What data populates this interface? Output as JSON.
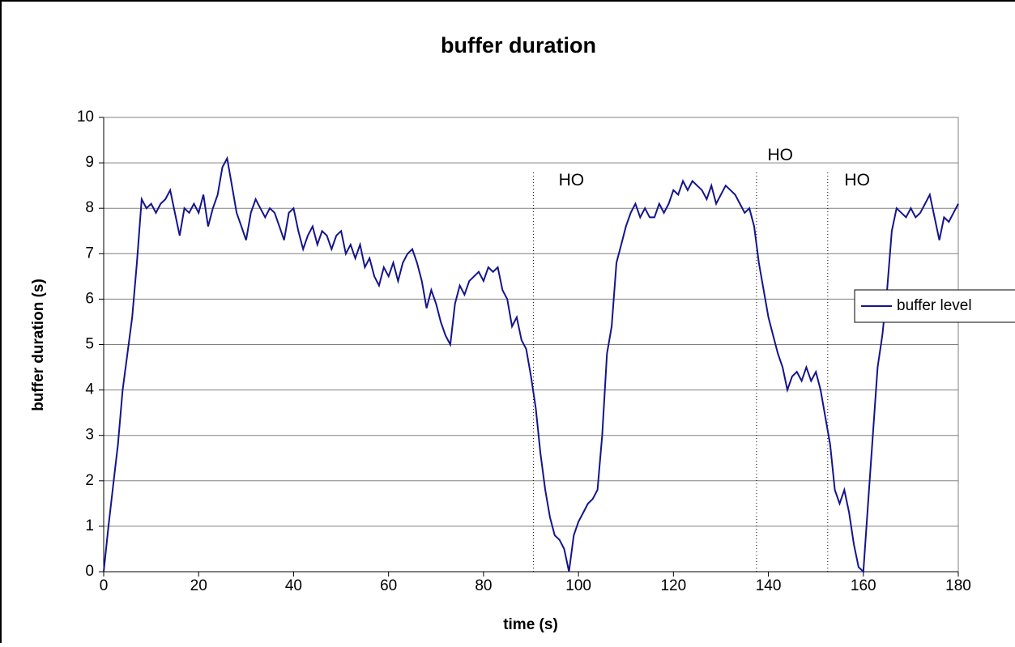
{
  "chart_data": {
    "type": "line",
    "title": "buffer duration",
    "xlabel": "time (s)",
    "ylabel": "buffer duration (s)",
    "xlim": [
      0,
      180
    ],
    "xticks": [
      0,
      20,
      40,
      60,
      80,
      100,
      120,
      140,
      160,
      180
    ],
    "ylim": [
      0,
      10
    ],
    "yticks": [
      0,
      1,
      2,
      3,
      4,
      5,
      6,
      7,
      8,
      9,
      10
    ],
    "grid": true,
    "legend": "right",
    "x": [
      0,
      1,
      2,
      3,
      4,
      5,
      6,
      7,
      8,
      9,
      10,
      11,
      12,
      13,
      14,
      15,
      16,
      17,
      18,
      19,
      20,
      21,
      22,
      23,
      24,
      25,
      26,
      27,
      28,
      29,
      30,
      31,
      32,
      33,
      34,
      35,
      36,
      37,
      38,
      39,
      40,
      41,
      42,
      43,
      44,
      45,
      46,
      47,
      48,
      49,
      50,
      51,
      52,
      53,
      54,
      55,
      56,
      57,
      58,
      59,
      60,
      61,
      62,
      63,
      64,
      65,
      66,
      67,
      68,
      69,
      70,
      71,
      72,
      73,
      74,
      75,
      76,
      77,
      78,
      79,
      80,
      81,
      82,
      83,
      84,
      85,
      86,
      87,
      88,
      89,
      90,
      91,
      92,
      93,
      94,
      95,
      96,
      97,
      98,
      99,
      100,
      101,
      102,
      103,
      104,
      105,
      106,
      107,
      108,
      109,
      110,
      111,
      112,
      113,
      114,
      115,
      116,
      117,
      118,
      119,
      120,
      121,
      122,
      123,
      124,
      125,
      126,
      127,
      128,
      129,
      130,
      131,
      132,
      133,
      134,
      135,
      136,
      137,
      138,
      139,
      140,
      141,
      142,
      143,
      144,
      145,
      146,
      147,
      148,
      149,
      150,
      151,
      152,
      153,
      154,
      155,
      156,
      157,
      158,
      159,
      160,
      161,
      162,
      163,
      164,
      165,
      166,
      167,
      168,
      169,
      170,
      171,
      172,
      173,
      174,
      175,
      176,
      177,
      178,
      179,
      180
    ],
    "series": [
      {
        "name": "buffer level",
        "color": "#14148c",
        "values": [
          0,
          1.0,
          1.9,
          2.8,
          4.0,
          4.8,
          5.6,
          6.8,
          8.2,
          8.0,
          8.1,
          7.9,
          8.1,
          8.2,
          8.4,
          7.9,
          7.4,
          8.0,
          7.9,
          8.1,
          7.9,
          8.3,
          7.6,
          8.0,
          8.3,
          8.9,
          9.1,
          8.5,
          7.9,
          7.6,
          7.3,
          7.9,
          8.2,
          8.0,
          7.8,
          8.0,
          7.9,
          7.6,
          7.3,
          7.9,
          8.0,
          7.5,
          7.1,
          7.4,
          7.6,
          7.2,
          7.5,
          7.4,
          7.1,
          7.4,
          7.5,
          7.0,
          7.2,
          6.9,
          7.2,
          6.7,
          6.9,
          6.5,
          6.3,
          6.7,
          6.5,
          6.8,
          6.4,
          6.8,
          7.0,
          7.1,
          6.8,
          6.4,
          5.8,
          6.2,
          5.9,
          5.5,
          5.2,
          5.0,
          5.9,
          6.3,
          6.1,
          6.4,
          6.5,
          6.6,
          6.4,
          6.7,
          6.6,
          6.7,
          6.2,
          6.0,
          5.4,
          5.6,
          5.1,
          4.9,
          4.3,
          3.6,
          2.6,
          1.8,
          1.2,
          0.8,
          0.7,
          0.5,
          0.0,
          0.8,
          1.1,
          1.3,
          1.5,
          1.6,
          1.8,
          3.0,
          4.8,
          5.4,
          6.8,
          7.2,
          7.6,
          7.9,
          8.1,
          7.8,
          8.0,
          7.8,
          7.8,
          8.1,
          7.9,
          8.1,
          8.4,
          8.3,
          8.6,
          8.4,
          8.6,
          8.5,
          8.4,
          8.2,
          8.5,
          8.1,
          8.3,
          8.5,
          8.4,
          8.3,
          8.1,
          7.9,
          8.0,
          7.6,
          6.8,
          6.2,
          5.6,
          5.2,
          4.8,
          4.5,
          4.0,
          4.3,
          4.4,
          4.2,
          4.5,
          4.2,
          4.4,
          4.0,
          3.4,
          2.8,
          1.8,
          1.5,
          1.8,
          1.3,
          0.6,
          0.1,
          0.0,
          1.5,
          3.0,
          4.5,
          5.2,
          6.2,
          7.5,
          8.0,
          7.9,
          7.8,
          8.0,
          7.8,
          7.9,
          8.1,
          8.3,
          7.8,
          7.3,
          7.8,
          7.7,
          7.9,
          8.1
        ]
      }
    ],
    "annotations": [
      {
        "text": "HO",
        "line_x": 90.5,
        "text_x": 98.5,
        "text_y": 8.6
      },
      {
        "text": "HO",
        "line_x": 137.5,
        "text_x": 142.5,
        "text_y": 9.15
      },
      {
        "text": "HO",
        "line_x": 152.5,
        "text_x": 158.7,
        "text_y": 8.6
      }
    ]
  }
}
